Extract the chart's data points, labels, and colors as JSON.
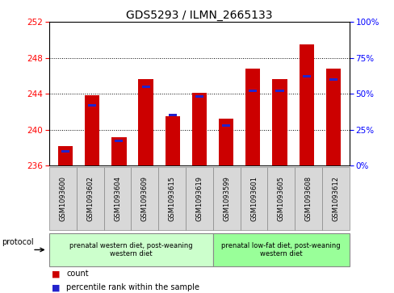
{
  "title": "GDS5293 / ILMN_2665133",
  "samples": [
    "GSM1093600",
    "GSM1093602",
    "GSM1093604",
    "GSM1093609",
    "GSM1093615",
    "GSM1093619",
    "GSM1093599",
    "GSM1093601",
    "GSM1093605",
    "GSM1093608",
    "GSM1093612"
  ],
  "red_values": [
    238.2,
    243.8,
    239.2,
    245.6,
    241.5,
    244.1,
    241.2,
    246.8,
    245.6,
    249.5,
    246.8
  ],
  "blue_percentiles": [
    10,
    42,
    17,
    55,
    35,
    48,
    28,
    52,
    52,
    62,
    60
  ],
  "y_min": 236,
  "y_max": 252,
  "y_ticks": [
    236,
    240,
    244,
    248,
    252
  ],
  "y2_ticks": [
    0,
    25,
    50,
    75,
    100
  ],
  "group1_label": "prenatal western diet, post-weaning\nwestern diet",
  "group2_label": "prenatal low-fat diet, post-weaning\nwestern diet",
  "group1_count": 6,
  "group2_count": 5,
  "group1_color": "#ccffcc",
  "group2_color": "#99ff99",
  "protocol_label": "protocol",
  "legend_red": "count",
  "legend_blue": "percentile rank within the sample",
  "bar_color_red": "#cc0000",
  "bar_color_blue": "#2222cc",
  "title_fontsize": 10,
  "tick_fontsize": 7.5,
  "sample_fontsize": 6,
  "legend_fontsize": 7
}
